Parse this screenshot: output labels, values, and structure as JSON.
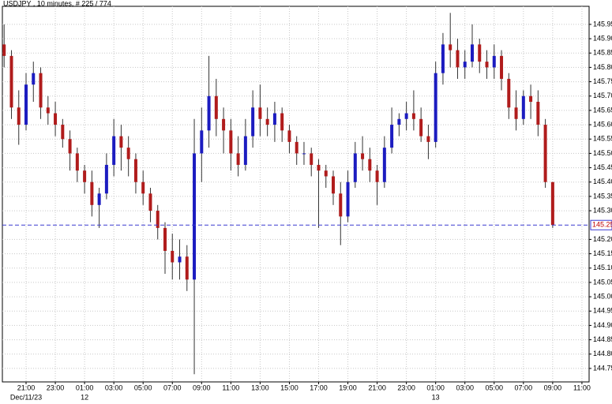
{
  "chart_data": {
    "type": "candlestick",
    "title": "USDJPY , 10 minutes, # 225 / 774",
    "up_color": "#1c1cc0",
    "down_color": "#b01c1c",
    "xlim": [
      19.38,
      59.49
    ],
    "xticks": [
      {
        "value": 21,
        "label": "21:00"
      },
      {
        "value": 23,
        "label": "23:00"
      },
      {
        "value": 25,
        "label": "01:00"
      },
      {
        "value": 27,
        "label": "03:00"
      },
      {
        "value": 29,
        "label": "05:00"
      },
      {
        "value": 31,
        "label": "07:00"
      },
      {
        "value": 33,
        "label": "09:00"
      },
      {
        "value": 35,
        "label": "11:00"
      },
      {
        "value": 37,
        "label": "13:00"
      },
      {
        "value": 39,
        "label": "15:00"
      },
      {
        "value": 41,
        "label": "17:00"
      },
      {
        "value": 43,
        "label": "19:00"
      },
      {
        "value": 45,
        "label": "21:00"
      },
      {
        "value": 47,
        "label": "23:00"
      },
      {
        "value": 49,
        "label": "01:00"
      },
      {
        "value": 51,
        "label": "03:00"
      },
      {
        "value": 53,
        "label": "05:00"
      },
      {
        "value": 55,
        "label": "07:00"
      },
      {
        "value": 57,
        "label": "09:00"
      },
      {
        "value": 59,
        "label": "11:00"
      }
    ],
    "date_labels": [
      {
        "value": 21,
        "label": "Dec/11/23"
      },
      {
        "value": 25,
        "label": "12"
      },
      {
        "value": 49,
        "label": "13"
      }
    ],
    "ylim": [
      144.703,
      146.013
    ],
    "yticks": [
      144.75,
      {
        "value": 144.8,
        "label": "144.80"
      },
      144.85,
      {
        "value": 144.9,
        "label": "144.90"
      },
      144.95,
      {
        "value": 145,
        "label": "145.00"
      },
      145.05,
      {
        "value": 145.1,
        "label": "145.10"
      },
      145.15,
      {
        "value": 145.2,
        "label": "145.20"
      },
      {
        "value": 145.3,
        "label": "145.30"
      },
      145.35,
      {
        "value": 145.4,
        "label": "145.40"
      },
      145.45,
      {
        "value": 145.5,
        "label": "145.50"
      },
      145.55,
      {
        "value": 145.6,
        "label": "145.60"
      },
      145.65,
      {
        "value": 145.7,
        "label": "145.70"
      },
      145.75,
      {
        "value": 145.8,
        "label": "145.80"
      },
      145.85,
      {
        "value": 145.9,
        "label": "145.90"
      },
      145.95
    ],
    "grid": true,
    "last_price": 145.25,
    "x": [
      19.5,
      20,
      20.5,
      21,
      21.5,
      22,
      22.5,
      23,
      23.5,
      24,
      24.5,
      25,
      25.5,
      26,
      26.5,
      27,
      27.5,
      28,
      28.5,
      29,
      29.5,
      30,
      30.5,
      31,
      31.5,
      32,
      32.5,
      33,
      33.5,
      34,
      34.5,
      35,
      35.5,
      36,
      36.5,
      37,
      37.5,
      38,
      38.5,
      39,
      39.5,
      40,
      40.5,
      41,
      41.5,
      42,
      42.5,
      43,
      43.5,
      44,
      44.5,
      45,
      45.5,
      46,
      46.5,
      47,
      47.5,
      48,
      48.5,
      49,
      49.5,
      50,
      50.5,
      51,
      51.5,
      52,
      52.5,
      53,
      53.5,
      54,
      54.5,
      55,
      55.5,
      56,
      56.5,
      57
    ],
    "open": [
      145.88,
      145.84,
      145.66,
      145.6,
      145.74,
      145.78,
      145.66,
      145.64,
      145.6,
      145.55,
      145.5,
      145.44,
      145.4,
      145.32,
      145.36,
      145.46,
      145.56,
      145.52,
      145.48,
      145.4,
      145.36,
      145.3,
      145.24,
      145.16,
      145.12,
      145.14,
      145.06,
      145.5,
      145.58,
      145.7,
      145.62,
      145.58,
      145.5,
      145.46,
      145.56,
      145.66,
      145.62,
      145.6,
      145.64,
      145.58,
      145.54,
      145.5,
      145.5,
      145.46,
      145.44,
      145.42,
      145.36,
      145.28,
      145.4,
      145.5,
      145.48,
      145.44,
      145.4,
      145.52,
      145.6,
      145.62,
      145.64,
      145.62,
      145.56,
      145.54,
      145.78,
      145.88,
      145.86,
      145.8,
      145.82,
      145.88,
      145.82,
      145.8,
      145.84,
      145.76,
      145.66,
      145.62,
      145.7,
      145.68,
      145.6,
      145.4
    ],
    "high": [
      145.95,
      145.86,
      145.72,
      145.78,
      145.82,
      145.8,
      145.7,
      145.68,
      145.62,
      145.58,
      145.52,
      145.46,
      145.44,
      145.38,
      145.5,
      145.62,
      145.6,
      145.56,
      145.5,
      145.44,
      145.38,
      145.32,
      145.26,
      145.22,
      145.2,
      145.18,
      145.62,
      145.66,
      145.84,
      145.76,
      145.66,
      145.62,
      145.56,
      145.62,
      145.72,
      145.74,
      145.66,
      145.68,
      145.66,
      145.6,
      145.56,
      145.54,
      145.52,
      145.48,
      145.46,
      145.44,
      145.4,
      145.44,
      145.54,
      145.56,
      145.52,
      145.46,
      145.56,
      145.66,
      145.64,
      145.68,
      145.72,
      145.66,
      145.6,
      145.82,
      145.92,
      145.99,
      145.9,
      145.86,
      145.95,
      145.9,
      145.86,
      145.88,
      145.86,
      145.78,
      145.72,
      145.72,
      145.74,
      145.72,
      145.62,
      145.4
    ],
    "low": [
      145.8,
      145.62,
      145.53,
      145.58,
      145.68,
      145.62,
      145.6,
      145.56,
      145.52,
      145.44,
      145.4,
      145.36,
      145.28,
      145.24,
      145.34,
      145.42,
      145.44,
      145.42,
      145.36,
      145.32,
      145.26,
      145.2,
      145.08,
      145.06,
      145.06,
      145.02,
      144.73,
      145.4,
      145.52,
      145.56,
      145.5,
      145.44,
      145.42,
      145.44,
      145.52,
      145.56,
      145.56,
      145.54,
      145.54,
      145.5,
      145.46,
      145.46,
      145.42,
      145.24,
      145.38,
      145.32,
      145.18,
      145.26,
      145.38,
      145.44,
      145.4,
      145.32,
      145.38,
      145.5,
      145.56,
      145.58,
      145.58,
      145.54,
      145.48,
      145.52,
      145.74,
      145.8,
      145.76,
      145.76,
      145.8,
      145.78,
      145.76,
      145.76,
      145.72,
      145.62,
      145.58,
      145.6,
      145.62,
      145.56,
      145.38,
      145.24
    ],
    "close": [
      145.84,
      145.66,
      145.6,
      145.74,
      145.78,
      145.66,
      145.64,
      145.6,
      145.55,
      145.5,
      145.44,
      145.4,
      145.32,
      145.36,
      145.46,
      145.56,
      145.52,
      145.48,
      145.4,
      145.36,
      145.3,
      145.24,
      145.16,
      145.12,
      145.14,
      145.06,
      145.5,
      145.58,
      145.7,
      145.62,
      145.58,
      145.5,
      145.46,
      145.56,
      145.66,
      145.62,
      145.6,
      145.64,
      145.58,
      145.54,
      145.5,
      145.5,
      145.46,
      145.44,
      145.42,
      145.36,
      145.28,
      145.4,
      145.5,
      145.48,
      145.44,
      145.4,
      145.52,
      145.6,
      145.62,
      145.64,
      145.62,
      145.56,
      145.54,
      145.78,
      145.88,
      145.86,
      145.8,
      145.82,
      145.88,
      145.82,
      145.8,
      145.84,
      145.76,
      145.66,
      145.62,
      145.7,
      145.68,
      145.6,
      145.4,
      145.25
    ]
  }
}
